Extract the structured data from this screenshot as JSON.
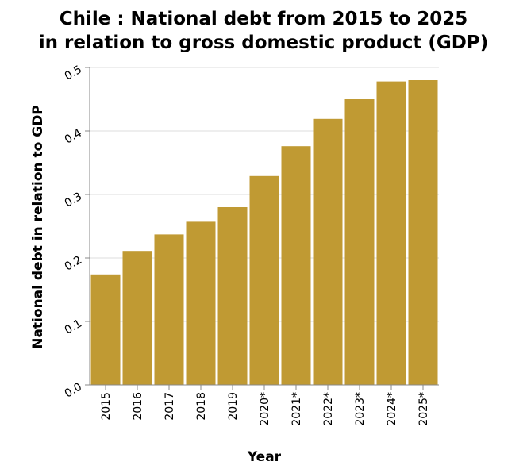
{
  "chart_data": {
    "type": "bar",
    "title_lines": [
      "Chile : National debt from 2015 to 2025",
      "in relation to gross domestic product (GDP)"
    ],
    "xlabel": "Year",
    "ylabel": "National debt in relation to GDP",
    "categories": [
      "2015",
      "2016",
      "2017",
      "2018",
      "2019",
      "2020*",
      "2021*",
      "2022*",
      "2023*",
      "2024*",
      "2025*"
    ],
    "values": [
      0.174,
      0.211,
      0.237,
      0.257,
      0.28,
      0.329,
      0.376,
      0.419,
      0.45,
      0.478,
      0.48
    ],
    "ylim": [
      0,
      0.5
    ],
    "yticks": [
      "0.0",
      "0.1",
      "0.2",
      "0.3",
      "0.4",
      "0.5"
    ],
    "grid": true,
    "bar_color": "#c09a33"
  }
}
